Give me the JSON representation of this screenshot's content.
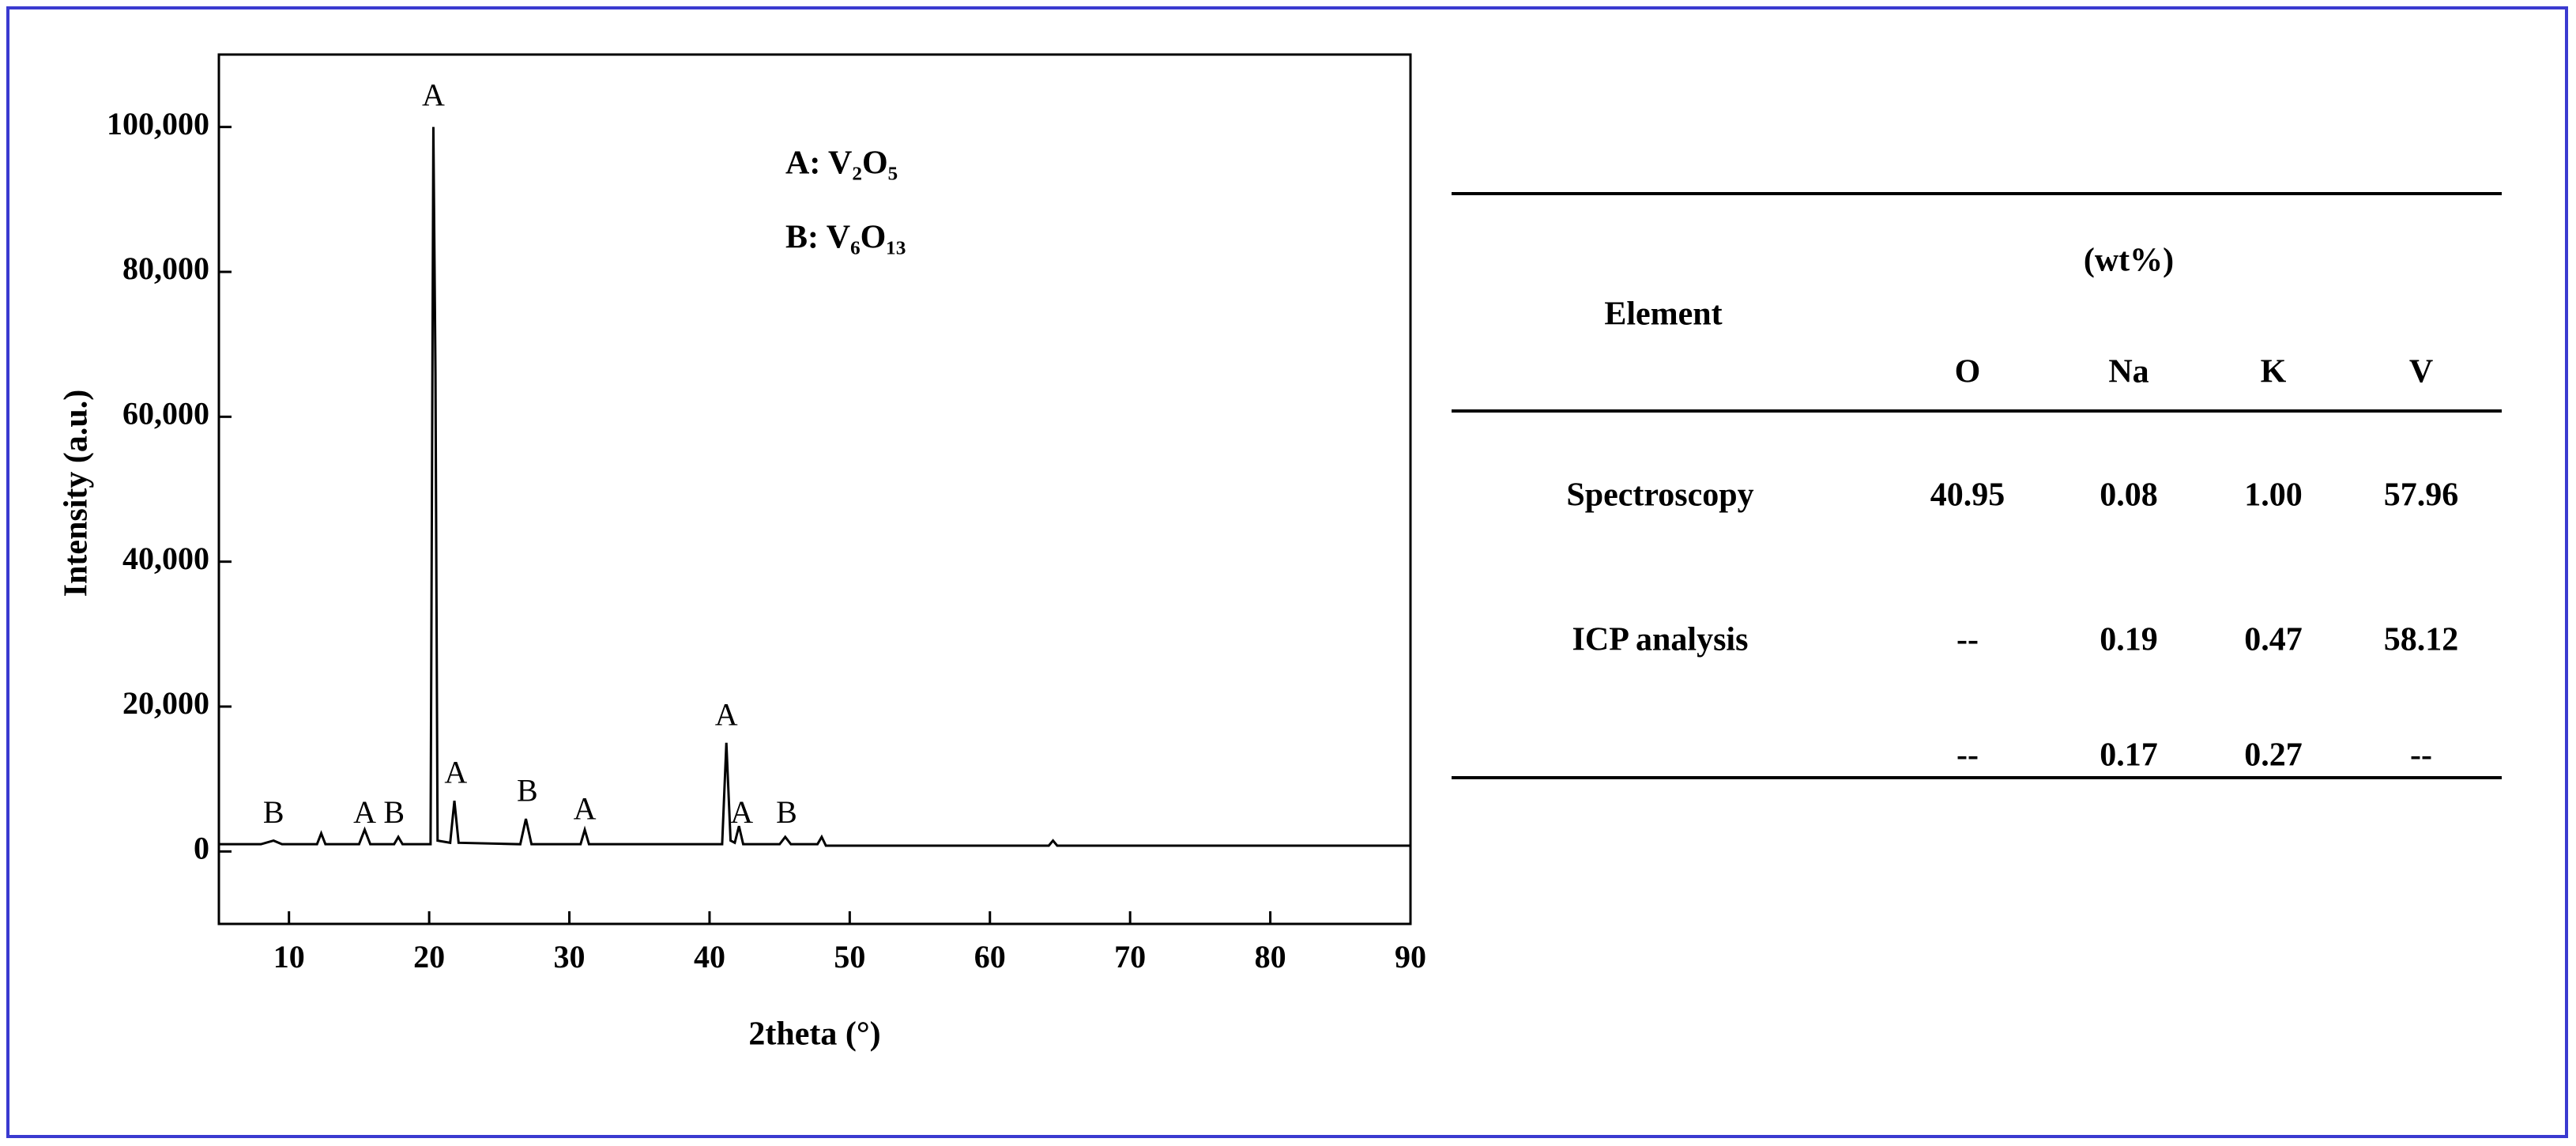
{
  "chart_data": {
    "type": "line",
    "x_label": "2theta (°)",
    "y_label": "Intensity (a.u.)",
    "x": [
      5,
      8,
      8.9,
      9.5,
      12,
      12.3,
      12.6,
      15,
      15.4,
      15.8,
      17.5,
      17.8,
      18.1,
      20.1,
      20.3,
      20.45,
      20.6,
      21.5,
      21.8,
      22.1,
      26.5,
      26.9,
      27.3,
      30.8,
      31.1,
      31.4,
      40.9,
      41.2,
      41.5,
      41.8,
      42.1,
      42.4,
      45,
      45.4,
      45.8,
      47.7,
      48,
      48.3,
      64.2,
      64.5,
      64.8,
      90
    ],
    "values": [
      1000,
      1000,
      1500,
      1000,
      1000,
      2500,
      1000,
      1000,
      3000,
      1000,
      1000,
      2000,
      1000,
      1000,
      100000,
      66000,
      1500,
      1200,
      7000,
      1200,
      1000,
      4500,
      1000,
      1000,
      3000,
      1000,
      1000,
      15000,
      1500,
      1200,
      3500,
      1000,
      1000,
      2000,
      1000,
      1000,
      2000,
      800,
      800,
      1500,
      800,
      800
    ],
    "color": "#000000",
    "xlim": [
      5,
      90
    ],
    "xticks": [
      10,
      20,
      30,
      40,
      50,
      60,
      70,
      80,
      90
    ],
    "ylim": [
      -10000,
      110000
    ],
    "yticks": [
      0,
      {
        "value": 20000,
        "label": "20,000"
      },
      {
        "value": 40000,
        "label": "40,000"
      },
      {
        "value": 60000,
        "label": "60,000"
      },
      {
        "value": 80000,
        "label": "80,000"
      },
      {
        "value": 100000,
        "label": "100,000"
      }
    ],
    "legend": [
      "A: V₂O₅",
      "B: V₆O₁₃"
    ],
    "peak_labels": [
      {
        "label": "A",
        "x": 20.3,
        "y": 102000
      },
      {
        "label": "A",
        "x": 21.9,
        "y": 8500
      },
      {
        "label": "B",
        "x": 8.9,
        "y": 3000
      },
      {
        "label": "A",
        "x": 15.4,
        "y": 3000
      },
      {
        "label": "B",
        "x": 17.5,
        "y": 3000
      },
      {
        "label": "B",
        "x": 27,
        "y": 6000
      },
      {
        "label": "A",
        "x": 31.1,
        "y": 3500
      },
      {
        "label": "A",
        "x": 41.2,
        "y": 16500
      },
      {
        "label": "A",
        "x": 42.3,
        "y": 3000
      },
      {
        "label": "B",
        "x": 45.5,
        "y": 3000
      }
    ]
  },
  "table": {
    "row_header": "Element",
    "group_header": "(wt%)",
    "columns": [
      "O",
      "Na",
      "K",
      "V"
    ],
    "rows": [
      {
        "label": "Spectroscopy",
        "cells": [
          "40.95",
          "0.08",
          "1.00",
          "57.96"
        ]
      },
      {
        "label": "ICP analysis",
        "cells": [
          "--",
          "0.19",
          "0.47",
          "58.12"
        ]
      },
      {
        "label": null,
        "cells": [
          "--",
          "0.17",
          "0.27",
          "--"
        ]
      }
    ]
  }
}
